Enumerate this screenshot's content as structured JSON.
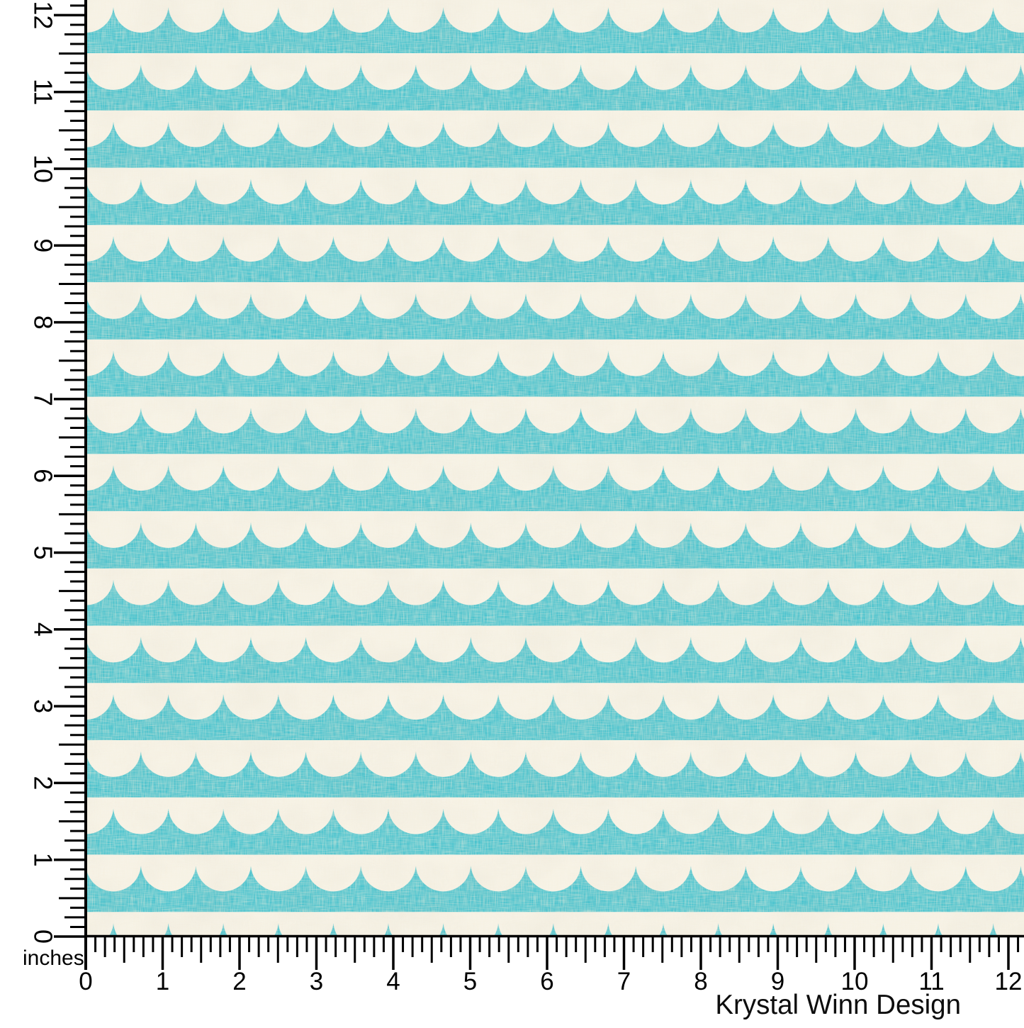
{
  "brand": {
    "name": "Krystal Winn Design"
  },
  "ruler": {
    "unit_label": "inches",
    "inches": 12,
    "divisions_per_inch": 8,
    "left_labels": [
      "0",
      "1",
      "2",
      "3",
      "4",
      "5",
      "6",
      "7",
      "8",
      "9",
      "10",
      "11",
      "12"
    ],
    "bottom_labels": [
      "0",
      "1",
      "2",
      "3",
      "4",
      "5",
      "6",
      "7",
      "8",
      "9",
      "10",
      "11",
      "12"
    ]
  },
  "pattern": {
    "description": "Rows of teal scallop waves with white bumps on cream linen-textured fabric",
    "colors": {
      "teal": "#45c2ce",
      "cream": "#f7f3e7",
      "beige_streak": "#e6dcc0",
      "ruler_ink": "#000000"
    }
  }
}
